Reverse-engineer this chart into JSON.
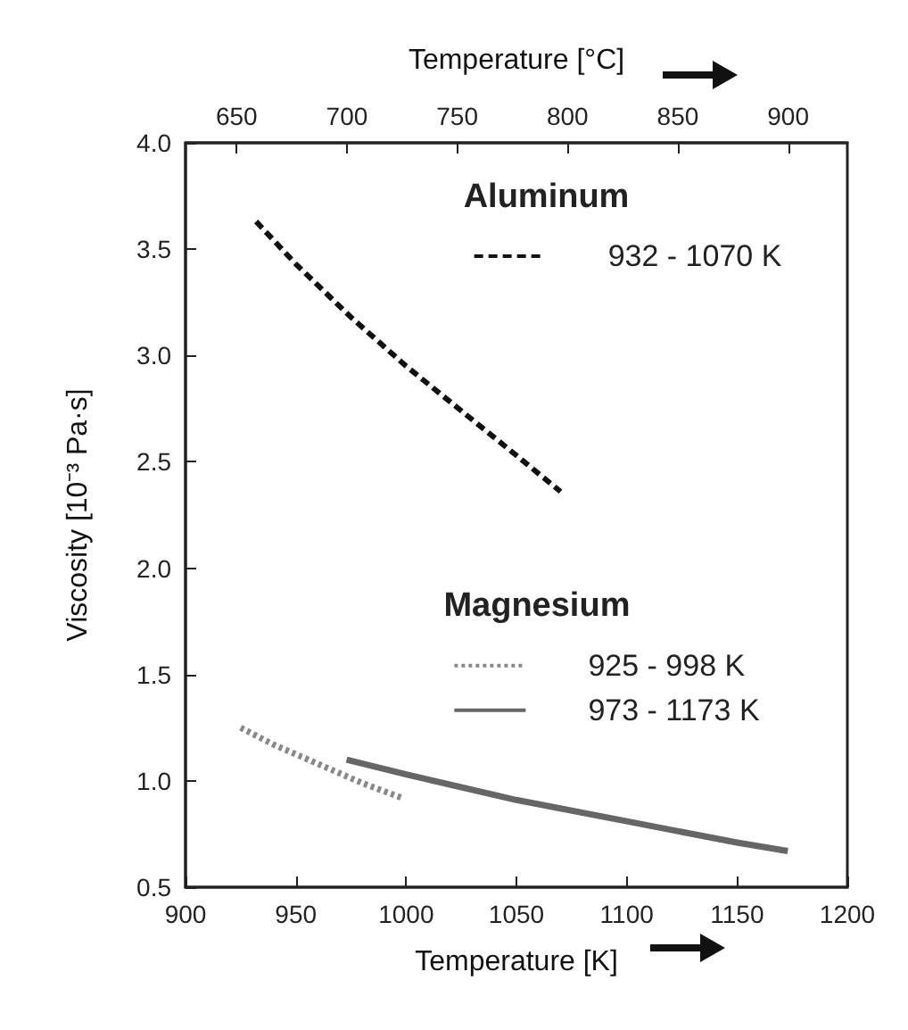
{
  "chart_data": {
    "type": "line",
    "xlabel": "Temperature [K]",
    "x2label": "Temperature [°C]",
    "ylabel": "Viscosity [10⁻³ Pa·s]",
    "annotations": [
      "Aluminum",
      "Magnesium"
    ],
    "xlim": [
      900,
      1200
    ],
    "xticks": [
      900,
      950,
      1000,
      1050,
      1100,
      1150,
      1200
    ],
    "x2lim": [
      626.85,
      926.85
    ],
    "x2ticks": [
      650,
      700,
      750,
      800,
      850,
      900
    ],
    "ylim": [
      0.5,
      4.0
    ],
    "yticks": [
      0.5,
      {
        "value": 1,
        "label": "1.0"
      },
      1.5,
      {
        "value": 2,
        "label": "2.0"
      },
      2.5,
      {
        "value": 3,
        "label": "3.0"
      },
      3.5,
      {
        "value": 4,
        "label": "4.0"
      }
    ],
    "grid": false,
    "legend": "top right",
    "marker": "none",
    "series": [
      {
        "name": "932 - 1070 K",
        "color": "#111111",
        "line_style": "dashed",
        "x": [
          932,
          950,
          975,
          1000,
          1025,
          1050,
          1070
        ],
        "values": [
          3.63,
          3.43,
          3.18,
          2.95,
          2.74,
          2.53,
          2.36
        ]
      },
      {
        "name": "925 - 998 K",
        "color": "#888888",
        "line_style": "dotted",
        "x": [
          925,
          940,
          960,
          980,
          998
        ],
        "values": [
          1.25,
          1.17,
          1.08,
          0.99,
          0.92
        ]
      },
      {
        "name": "973 - 1173 K",
        "color": "#666666",
        "line_style": "solid",
        "x": [
          973,
          1000,
          1050,
          1100,
          1150,
          1173
        ],
        "values": [
          1.1,
          1.03,
          0.91,
          0.81,
          0.71,
          0.67
        ]
      }
    ]
  }
}
